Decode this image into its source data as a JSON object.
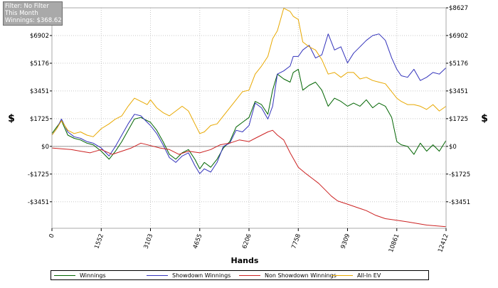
{
  "info_panel": {
    "filter": "Filter: No Filter",
    "period": "This Month",
    "winnings": "Winnings: $368.62"
  },
  "chart_data": {
    "type": "line",
    "xlabel": "Hands",
    "ylabel": "$",
    "xlim": [
      0,
      12412
    ],
    "ylim": [
      -5100,
      8627
    ],
    "x_ticks": [
      0,
      1552,
      3103,
      4655,
      6206,
      7758,
      9309,
      10861,
      12412
    ],
    "y_ticks": [
      -3451,
      -1725,
      0,
      1725,
      3451,
      5176,
      6902,
      8627
    ],
    "y_tick_labels": [
      "-$3451",
      "-$1725",
      "$0",
      "$1725",
      "$3451",
      "$5176",
      "$6902",
      "$8627"
    ],
    "grid": true,
    "legend_position": "bottom",
    "series": [
      {
        "name": "Winnings",
        "color": "#006400",
        "x": [
          0,
          150,
          300,
          500,
          700,
          900,
          1100,
          1300,
          1552,
          1800,
          2000,
          2200,
          2400,
          2600,
          2800,
          3000,
          3103,
          3300,
          3500,
          3700,
          3900,
          4100,
          4300,
          4500,
          4655,
          4800,
          5000,
          5200,
          5400,
          5600,
          5800,
          6000,
          6206,
          6400,
          6600,
          6800,
          6950,
          7100,
          7300,
          7500,
          7600,
          7758,
          7900,
          8100,
          8300,
          8500,
          8700,
          8900,
          9100,
          9309,
          9500,
          9700,
          9900,
          10100,
          10300,
          10500,
          10700,
          10861,
          11000,
          11200,
          11400,
          11600,
          11800,
          12000,
          12200,
          12412
        ],
        "y": [
          800,
          1200,
          1600,
          700,
          500,
          400,
          200,
          100,
          -300,
          -800,
          -300,
          300,
          1000,
          1700,
          1800,
          1600,
          1500,
          1000,
          300,
          -500,
          -800,
          -400,
          -200,
          -800,
          -1400,
          -1000,
          -1300,
          -800,
          -100,
          300,
          1200,
          1500,
          1800,
          2800,
          2600,
          2000,
          3500,
          4500,
          4200,
          4000,
          4600,
          4800,
          3500,
          3800,
          4000,
          3500,
          2500,
          3000,
          2800,
          2500,
          2700,
          2500,
          2900,
          2400,
          2700,
          2500,
          1800,
          300,
          100,
          0,
          -500,
          200,
          -300,
          100,
          -300,
          368
        ]
      },
      {
        "name": "Showdown Winnings",
        "color": "#3333bb",
        "x": [
          0,
          150,
          300,
          500,
          700,
          900,
          1100,
          1300,
          1552,
          1800,
          2000,
          2200,
          2400,
          2600,
          2800,
          3000,
          3103,
          3300,
          3500,
          3700,
          3900,
          4100,
          4300,
          4500,
          4655,
          4800,
          5000,
          5200,
          5400,
          5600,
          5800,
          6000,
          6206,
          6400,
          6600,
          6800,
          6950,
          7100,
          7300,
          7500,
          7600,
          7758,
          7900,
          8100,
          8300,
          8500,
          8700,
          8900,
          9100,
          9309,
          9500,
          9700,
          9900,
          10100,
          10300,
          10500,
          10700,
          10861,
          11000,
          11200,
          11400,
          11600,
          11800,
          12000,
          12200,
          12412
        ],
        "y": [
          700,
          1100,
          1700,
          900,
          600,
          500,
          300,
          200,
          -100,
          -600,
          0,
          700,
          1400,
          2000,
          1900,
          1500,
          1300,
          800,
          100,
          -700,
          -1000,
          -600,
          -400,
          -1200,
          -1700,
          -1400,
          -1600,
          -1000,
          0,
          200,
          1000,
          900,
          1300,
          2700,
          2400,
          1700,
          2500,
          4500,
          4700,
          5000,
          5600,
          5600,
          6000,
          6300,
          5500,
          5700,
          7000,
          6000,
          6200,
          5200,
          5800,
          6200,
          6600,
          6900,
          7000,
          6600,
          5500,
          4800,
          4400,
          4300,
          4800,
          4100,
          4300,
          4600,
          4500,
          4900
        ]
      },
      {
        "name": "Non Showdown Winnings",
        "color": "#cc2222",
        "x": [
          0,
          300,
          600,
          900,
          1200,
          1552,
          1900,
          2200,
          2500,
          2800,
          3103,
          3400,
          3700,
          4000,
          4300,
          4655,
          5000,
          5300,
          5600,
          5900,
          6206,
          6400,
          6600,
          6800,
          6950,
          7100,
          7300,
          7500,
          7758,
          8000,
          8200,
          8400,
          8600,
          8800,
          9000,
          9309,
          9600,
          9900,
          10200,
          10500,
          10861,
          11200,
          11500,
          11800,
          12100,
          12412
        ],
        "y": [
          -100,
          -150,
          -200,
          -300,
          -400,
          -200,
          -500,
          -300,
          -100,
          200,
          50,
          -100,
          -200,
          -500,
          -300,
          -400,
          -200,
          100,
          200,
          400,
          300,
          500,
          700,
          900,
          1000,
          700,
          400,
          -400,
          -1300,
          -1700,
          -2000,
          -2300,
          -2700,
          -3100,
          -3400,
          -3600,
          -3800,
          -4000,
          -4300,
          -4500,
          -4600,
          -4700,
          -4800,
          -4900,
          -4950,
          -5000
        ]
      },
      {
        "name": "All-In EV",
        "color": "#e8a800",
        "x": [
          0,
          150,
          300,
          500,
          700,
          900,
          1100,
          1300,
          1552,
          1800,
          2000,
          2200,
          2400,
          2600,
          2800,
          3000,
          3103,
          3300,
          3500,
          3700,
          3900,
          4100,
          4300,
          4500,
          4655,
          4800,
          5000,
          5200,
          5400,
          5600,
          5800,
          6000,
          6206,
          6400,
          6600,
          6800,
          6950,
          7100,
          7300,
          7500,
          7600,
          7758,
          7900,
          8100,
          8300,
          8500,
          8700,
          8900,
          9100,
          9309,
          9500,
          9700,
          9900,
          10100,
          10300,
          10500,
          10700,
          10861,
          11000,
          11200,
          11400,
          11600,
          11800,
          12000,
          12200,
          12412
        ],
        "y": [
          700,
          1100,
          1600,
          1000,
          800,
          900,
          700,
          600,
          1100,
          1400,
          1700,
          1900,
          2500,
          3000,
          2800,
          2600,
          2900,
          2400,
          2100,
          1900,
          2200,
          2500,
          2200,
          1400,
          800,
          900,
          1300,
          1400,
          1900,
          2400,
          2900,
          3400,
          3500,
          4500,
          5000,
          5600,
          6700,
          7200,
          8600,
          8400,
          8100,
          7900,
          6500,
          6200,
          6000,
          5400,
          4500,
          4600,
          4300,
          4600,
          4600,
          4200,
          4300,
          4100,
          4000,
          3900,
          3400,
          3000,
          2800,
          2600,
          2600,
          2500,
          2300,
          2600,
          2200,
          2500
        ]
      }
    ]
  }
}
